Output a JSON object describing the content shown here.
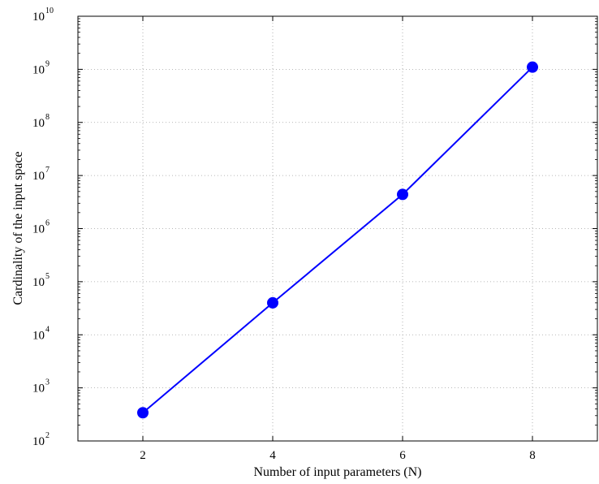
{
  "chart_data": {
    "type": "line",
    "title": "",
    "xlabel": "Number of input parameters (N)",
    "ylabel": "Cardinality of the input space",
    "x": [
      2,
      4,
      6,
      8
    ],
    "series": [
      {
        "values": [
          340,
          40000,
          4400000,
          1100000000
        ]
      }
    ],
    "xlim": [
      1,
      9
    ],
    "xticks": [
      "2",
      "4",
      "6",
      "8"
    ],
    "ylim": [
      100,
      10000000000
    ],
    "yscale": "log",
    "yticks_base": "10",
    "yticks_exponents": [
      "2",
      "3",
      "4",
      "5",
      "6",
      "7",
      "8",
      "9",
      "10"
    ],
    "grid": true,
    "marker": "circle",
    "line_color": "#0000ff"
  }
}
